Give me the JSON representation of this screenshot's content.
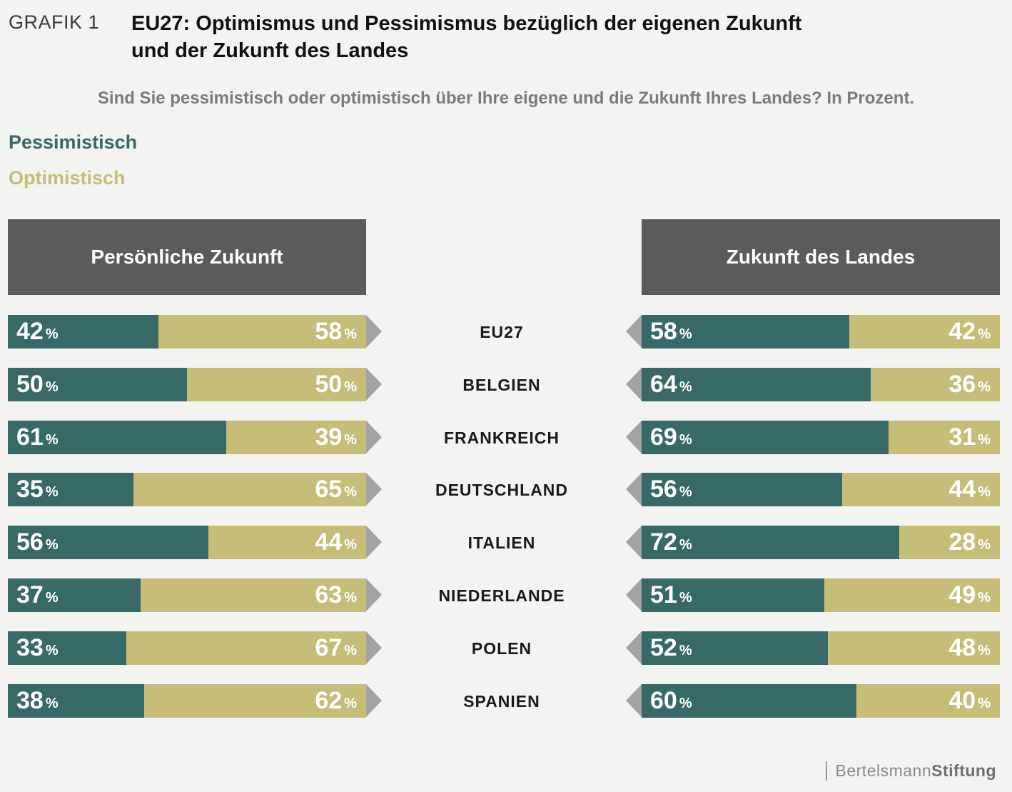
{
  "grafik_label": "GRAFIK 1",
  "title_line1": "EU27: Optimismus und Pessimismus bezüglich der eigenen Zukunft",
  "title_line2": "und der Zukunft des Landes",
  "subtitle": "Sind Sie pessimistisch oder optimistisch über Ihre eigene und die Zukunft Ihres Landes? In Prozent.",
  "colors": {
    "pessimistisch": "#376966",
    "optimistisch": "#c6bd78",
    "header_bg": "#5b5b5b",
    "arrow": "#a3a3a3",
    "background": "#f3f3f2"
  },
  "footer": {
    "brand_light": "Bertelsmann",
    "brand_bold": "Stiftung"
  },
  "chart_data": {
    "type": "bar",
    "stacked": true,
    "horizontal": true,
    "unit": "%",
    "legend": [
      "Pessimistisch",
      "Optimistisch"
    ],
    "legend_position": "top-left",
    "categories": [
      "EU27",
      "BELGIEN",
      "FRANKREICH",
      "DEUTSCHLAND",
      "ITALIEN",
      "NIEDERLANDE",
      "POLEN",
      "SPANIEN"
    ],
    "panels": [
      {
        "title": "Persönliche Zukunft",
        "series": [
          {
            "name": "Pessimistisch",
            "values": [
              42,
              50,
              61,
              35,
              56,
              37,
              33,
              38
            ]
          },
          {
            "name": "Optimistisch",
            "values": [
              58,
              50,
              39,
              65,
              44,
              63,
              67,
              62
            ]
          }
        ]
      },
      {
        "title": "Zukunft des Landes",
        "series": [
          {
            "name": "Pessimistisch",
            "values": [
              58,
              64,
              69,
              56,
              72,
              51,
              52,
              60
            ]
          },
          {
            "name": "Optimistisch",
            "values": [
              42,
              36,
              31,
              44,
              28,
              49,
              48,
              40
            ]
          }
        ]
      }
    ]
  }
}
